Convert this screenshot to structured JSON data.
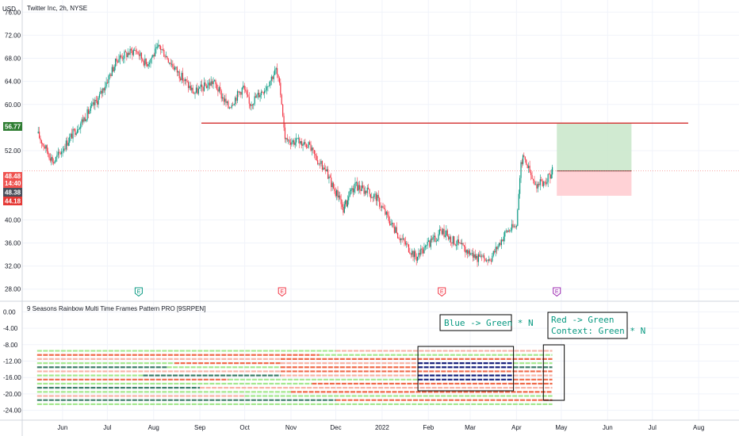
{
  "header": {
    "currency": "USD",
    "symbol_title": "Twitter Inc, 2h, NYSE"
  },
  "indicator": {
    "title": "9 Seasons Rainbow Multi Time Frames Pattern PRO [9SRPEN]"
  },
  "price_tags": {
    "target": "56.77",
    "current": "48.48",
    "countdown": "14:40",
    "gray": "48.38",
    "stop": "44.18"
  },
  "earnings_markers": [
    {
      "label": "E",
      "color": "#089981"
    },
    {
      "label": "E",
      "color": "#f23645"
    },
    {
      "label": "E",
      "color": "#f23645"
    },
    {
      "label": "E",
      "color": "#9c27b0"
    }
  ],
  "annotations": [
    {
      "lines": [
        "Blue -> Green * N"
      ]
    },
    {
      "lines": [
        "Red -> Green",
        "Context: Green * N"
      ]
    }
  ],
  "colors": {
    "up": "#089981",
    "down": "#f23645",
    "resistance": "#d32f2f",
    "target_zone": "#c8e6c9",
    "stop_zone": "#ffcdd2",
    "annotation_text": "#089981",
    "stripe_green": "#a5e88f",
    "stripe_red": "#f06a4a",
    "stripe_pink": "#f7b3a6",
    "stripe_teal": "#3f7f6a",
    "stripe_navy": "#1a237e"
  },
  "chart_data": [
    {
      "type": "candlestick",
      "title": "Twitter Inc, 2h, NYSE",
      "ylabel": "USD",
      "ylim": [
        27,
        77
      ],
      "y_ticks": [
        "76.00",
        "72.00",
        "68.00",
        "64.00",
        "60.00",
        "52.00",
        "40.00",
        "36.00",
        "32.00",
        "28.00"
      ],
      "x_ticks": [
        "Jun",
        "Jul",
        "Aug",
        "Sep",
        "Oct",
        "Nov",
        "Dec",
        "2022",
        "Feb",
        "Mar",
        "Apr",
        "May",
        "Jun",
        "Jul",
        "Aug"
      ],
      "price_path": [
        {
          "date": "2021-05-15",
          "price": 55
        },
        {
          "date": "2021-05-26",
          "price": 50
        },
        {
          "date": "2021-06-08",
          "price": 55
        },
        {
          "date": "2021-06-25",
          "price": 61
        },
        {
          "date": "2021-07-08",
          "price": 68
        },
        {
          "date": "2021-07-20",
          "price": 69.5
        },
        {
          "date": "2021-07-27",
          "price": 67
        },
        {
          "date": "2021-08-05",
          "price": 70
        },
        {
          "date": "2021-08-16",
          "price": 66
        },
        {
          "date": "2021-08-28",
          "price": 62
        },
        {
          "date": "2021-09-10",
          "price": 64
        },
        {
          "date": "2021-09-20",
          "price": 59.5
        },
        {
          "date": "2021-09-30",
          "price": 63
        },
        {
          "date": "2021-10-04",
          "price": 60
        },
        {
          "date": "2021-10-15",
          "price": 63
        },
        {
          "date": "2021-10-22",
          "price": 66
        },
        {
          "date": "2021-10-25",
          "price": 62
        },
        {
          "date": "2021-10-28",
          "price": 54
        },
        {
          "date": "2021-11-12",
          "price": 53
        },
        {
          "date": "2021-11-25",
          "price": 48
        },
        {
          "date": "2021-12-06",
          "price": 42
        },
        {
          "date": "2021-12-14",
          "price": 46
        },
        {
          "date": "2021-12-28",
          "price": 44
        },
        {
          "date": "2022-01-10",
          "price": 38
        },
        {
          "date": "2022-01-24",
          "price": 33.5
        },
        {
          "date": "2022-02-10",
          "price": 38
        },
        {
          "date": "2022-02-25",
          "price": 35
        },
        {
          "date": "2022-03-08",
          "price": 33
        },
        {
          "date": "2022-03-15",
          "price": 33.5
        },
        {
          "date": "2022-03-25",
          "price": 38
        },
        {
          "date": "2022-04-01",
          "price": 39
        },
        {
          "date": "2022-04-04",
          "price": 50
        },
        {
          "date": "2022-04-06",
          "price": 51
        },
        {
          "date": "2022-04-13",
          "price": 46
        },
        {
          "date": "2022-04-20",
          "price": 46.5
        },
        {
          "date": "2022-04-25",
          "price": 48.5
        }
      ],
      "resistance_line": {
        "price": 56.77,
        "from": "2021-09-02",
        "to": "2022-07-25"
      },
      "long_position": {
        "from": "2022-04-28",
        "to": "2022-06-17",
        "entry": 48.48,
        "target": 56.77,
        "stop": 44.18
      }
    },
    {
      "type": "heatmap",
      "title": "9 Seasons Rainbow Multi Time Frames Pattern PRO [9SRPEN]",
      "ylim": [
        -26,
        2
      ],
      "y_ticks": [
        "0.00",
        "-4.00",
        "-8.00",
        "-12.00",
        "-16.00",
        "-20.00",
        "-24.00"
      ],
      "rows": [
        -9.5,
        -10.5,
        -11.5,
        -12.5,
        -13.5,
        -14.5,
        -15.5,
        -16.5,
        -17.5,
        -18.5,
        -19.5,
        -20.5,
        -21.5,
        -22.5
      ],
      "row_segments": [
        [
          [
            "2021-05-15",
            "2021-12-01",
            "green"
          ],
          [
            "2021-12-01",
            "2022-04-25",
            "pink"
          ]
        ],
        [
          [
            "2021-05-15",
            "2021-11-20",
            "red"
          ],
          [
            "2021-11-20",
            "2022-04-25",
            "green"
          ]
        ],
        [
          [
            "2021-05-15",
            "2021-10-25",
            "pink"
          ],
          [
            "2021-10-25",
            "2022-04-25",
            "red"
          ]
        ],
        [
          [
            "2021-05-15",
            "2021-08-15",
            "green"
          ],
          [
            "2021-08-15",
            "2021-10-25",
            "red"
          ],
          [
            "2021-10-25",
            "2022-01-25",
            "pink"
          ],
          [
            "2022-01-25",
            "2022-03-30",
            "navy"
          ],
          [
            "2022-03-30",
            "2022-04-25",
            "green"
          ]
        ],
        [
          [
            "2021-05-15",
            "2021-08-10",
            "teal"
          ],
          [
            "2021-08-10",
            "2021-10-25",
            "green"
          ],
          [
            "2021-10-25",
            "2022-01-25",
            "red"
          ],
          [
            "2022-01-25",
            "2022-03-30",
            "navy"
          ],
          [
            "2022-03-30",
            "2022-04-25",
            "teal"
          ]
        ],
        [
          [
            "2021-05-15",
            "2021-10-25",
            "pink"
          ],
          [
            "2021-10-25",
            "2022-04-25",
            "red"
          ]
        ],
        [
          [
            "2021-05-15",
            "2021-07-25",
            "green"
          ],
          [
            "2021-07-25",
            "2021-10-25",
            "teal"
          ],
          [
            "2021-10-25",
            "2022-01-25",
            "pink"
          ],
          [
            "2022-01-25",
            "2022-03-30",
            "navy"
          ],
          [
            "2022-03-30",
            "2022-04-25",
            "pink"
          ]
        ],
        [
          [
            "2021-05-15",
            "2021-09-20",
            "red"
          ],
          [
            "2021-09-20",
            "2022-01-25",
            "green"
          ],
          [
            "2022-01-25",
            "2022-03-30",
            "navy"
          ],
          [
            "2022-03-30",
            "2022-04-25",
            "red"
          ]
        ],
        [
          [
            "2021-05-15",
            "2021-11-15",
            "green"
          ],
          [
            "2021-11-15",
            "2022-04-25",
            "red"
          ]
        ],
        [
          [
            "2021-05-15",
            "2021-09-01",
            "teal"
          ],
          [
            "2021-09-01",
            "2022-04-25",
            "pink"
          ]
        ],
        [
          [
            "2021-05-15",
            "2021-11-01",
            "green"
          ],
          [
            "2021-11-01",
            "2022-04-25",
            "red"
          ]
        ],
        [
          [
            "2021-05-15",
            "2021-10-01",
            "pink"
          ],
          [
            "2021-10-01",
            "2022-04-25",
            "green"
          ]
        ],
        [
          [
            "2021-05-15",
            "2021-12-01",
            "teal"
          ],
          [
            "2021-12-01",
            "2022-04-25",
            "red"
          ]
        ],
        [
          [
            "2021-05-15",
            "2022-04-25",
            "green"
          ]
        ]
      ]
    }
  ]
}
